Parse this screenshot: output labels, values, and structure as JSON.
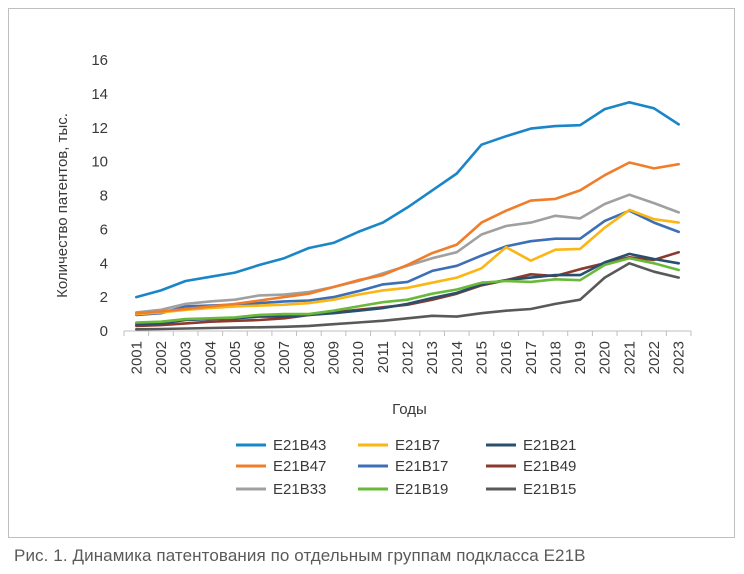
{
  "caption": "Рис. 1. Динамика патентования по отдельным группам подкласса E21B",
  "chart_data": {
    "type": "line",
    "title": "",
    "xlabel": "Годы",
    "ylabel": "Количество патентов, тыс.",
    "ylim": [
      0,
      16
    ],
    "yticks": [
      "0",
      "2",
      "4",
      "6",
      "8",
      "10",
      "12",
      "14",
      "16"
    ],
    "categories": [
      "2001",
      "2002",
      "2003",
      "2004",
      "2005",
      "2006",
      "2007",
      "2008",
      "2009",
      "2010",
      "2011",
      "2012",
      "2013",
      "2014",
      "2015",
      "2016",
      "2017",
      "2018",
      "2019",
      "2020",
      "2021",
      "2022",
      "2023"
    ],
    "grid": false,
    "legend": "bottom",
    "series": [
      {
        "name": "E21B43",
        "color": "#1a86c8",
        "values": [
          2.0,
          2.4,
          2.95,
          3.2,
          3.45,
          3.9,
          4.3,
          4.9,
          5.2,
          5.85,
          6.4,
          7.3,
          8.3,
          9.3,
          11.0,
          11.5,
          11.95,
          12.1,
          12.15,
          13.1,
          13.5,
          13.15,
          12.2
        ]
      },
      {
        "name": "E21B47",
        "color": "#f07d2a",
        "values": [
          1.05,
          1.15,
          1.3,
          1.45,
          1.6,
          1.8,
          2.0,
          2.2,
          2.6,
          3.0,
          3.3,
          3.9,
          4.6,
          5.1,
          6.4,
          7.1,
          7.7,
          7.8,
          8.3,
          9.2,
          9.95,
          9.6,
          9.85
        ]
      },
      {
        "name": "E21B33",
        "color": "#a0a0a0",
        "values": [
          1.1,
          1.25,
          1.6,
          1.75,
          1.85,
          2.1,
          2.15,
          2.3,
          2.6,
          2.95,
          3.4,
          3.85,
          4.3,
          4.65,
          5.7,
          6.2,
          6.4,
          6.8,
          6.65,
          7.5,
          8.05,
          7.55,
          7.0
        ]
      },
      {
        "name": "E21B7",
        "color": "#fbb614",
        "values": [
          1.0,
          1.1,
          1.25,
          1.35,
          1.45,
          1.5,
          1.55,
          1.65,
          1.85,
          2.15,
          2.4,
          2.55,
          2.85,
          3.15,
          3.7,
          4.95,
          4.15,
          4.8,
          4.85,
          6.1,
          7.15,
          6.6,
          6.4
        ]
      },
      {
        "name": "E21B17",
        "color": "#3d6fb7",
        "values": [
          0.95,
          1.05,
          1.45,
          1.5,
          1.55,
          1.65,
          1.75,
          1.8,
          2.0,
          2.35,
          2.75,
          2.9,
          3.55,
          3.85,
          4.45,
          5.0,
          5.3,
          5.45,
          5.45,
          6.5,
          7.1,
          6.4,
          5.85
        ]
      },
      {
        "name": "E21B19",
        "color": "#6ab93a",
        "values": [
          0.5,
          0.55,
          0.7,
          0.75,
          0.8,
          0.95,
          1.0,
          1.0,
          1.2,
          1.45,
          1.7,
          1.85,
          2.2,
          2.45,
          2.85,
          2.95,
          2.9,
          3.05,
          3.0,
          3.9,
          4.3,
          4.0,
          3.6
        ]
      },
      {
        "name": "E21B21",
        "color": "#28506e",
        "values": [
          0.4,
          0.45,
          0.65,
          0.7,
          0.75,
          0.85,
          0.85,
          0.95,
          1.05,
          1.2,
          1.35,
          1.6,
          1.95,
          2.25,
          2.75,
          3.0,
          3.15,
          3.3,
          3.3,
          4.05,
          4.55,
          4.25,
          4.0
        ]
      },
      {
        "name": "E21B49",
        "color": "#8b3a2b",
        "values": [
          0.3,
          0.35,
          0.45,
          0.55,
          0.6,
          0.65,
          0.75,
          0.95,
          1.1,
          1.25,
          1.4,
          1.55,
          1.85,
          2.2,
          2.7,
          3.0,
          3.35,
          3.25,
          3.65,
          4.0,
          4.35,
          4.2,
          4.65
        ]
      },
      {
        "name": "E21B15",
        "color": "#595959",
        "values": [
          0.1,
          0.12,
          0.15,
          0.18,
          0.2,
          0.22,
          0.25,
          0.3,
          0.4,
          0.5,
          0.6,
          0.75,
          0.9,
          0.85,
          1.05,
          1.2,
          1.3,
          1.6,
          1.85,
          3.15,
          4.0,
          3.5,
          3.15
        ]
      }
    ],
    "legend_order": [
      "E21B43",
      "E21B7",
      "E21B21",
      "E21B47",
      "E21B17",
      "E21B49",
      "E21B33",
      "E21B19",
      "E21B15"
    ]
  }
}
